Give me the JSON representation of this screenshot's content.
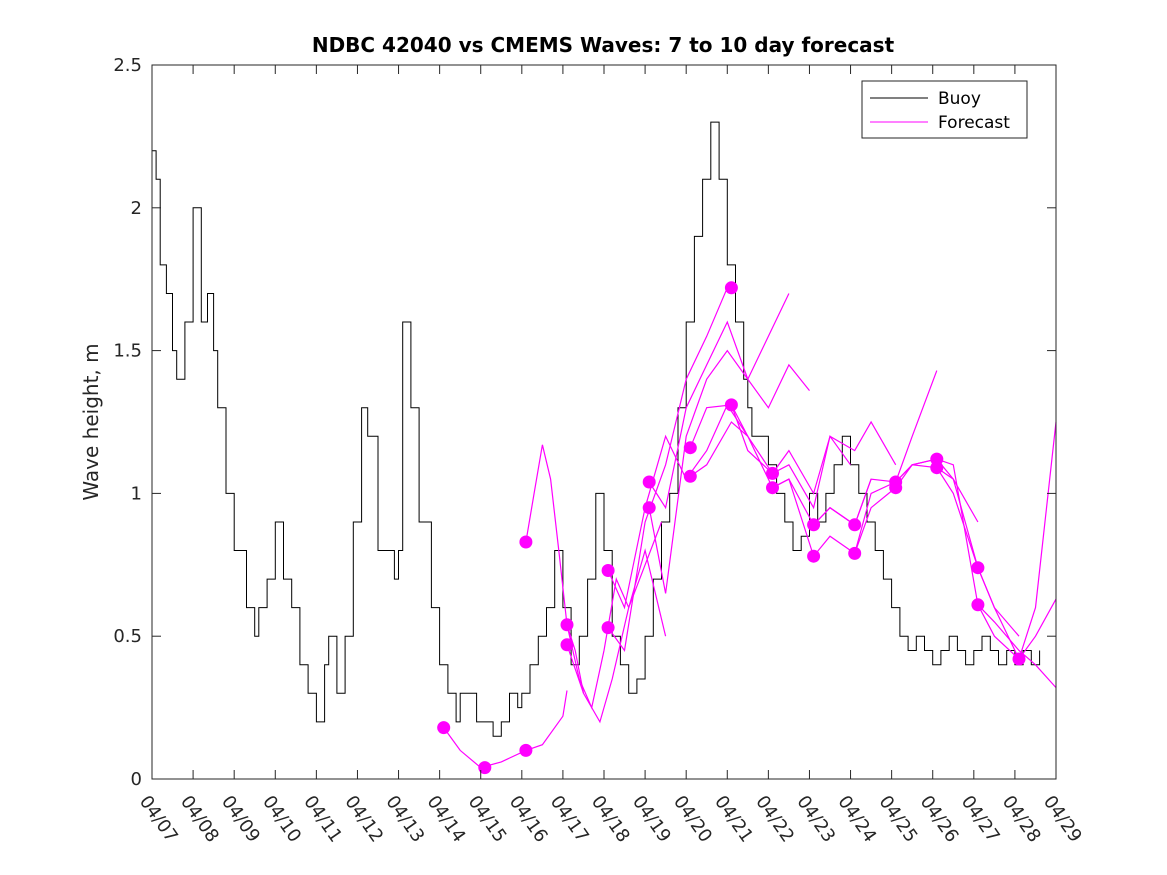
{
  "chart_data": {
    "type": "line",
    "title": "NDBC 42040 vs CMEMS Waves: 7 to 10 day forecast",
    "xlabel": "",
    "ylabel": "Wave height, m",
    "x_ticks": [
      "04/07",
      "04/08",
      "04/09",
      "04/10",
      "04/11",
      "04/12",
      "04/13",
      "04/14",
      "04/15",
      "04/16",
      "04/17",
      "04/18",
      "04/19",
      "04/20",
      "04/21",
      "04/22",
      "04/23",
      "04/24",
      "04/25",
      "04/26",
      "04/27",
      "04/28",
      "04/29"
    ],
    "y_ticks": [
      "0",
      "0.5",
      "1",
      "1.5",
      "2",
      "2.5"
    ],
    "xlim": [
      0,
      22
    ],
    "ylim": [
      0,
      2.5
    ],
    "legend": {
      "placement": "top-right",
      "entries": [
        "Buoy",
        "Forecast"
      ]
    },
    "colors": {
      "buoy": "#000000",
      "forecast": "#ff00ff"
    },
    "series": [
      {
        "name": "Buoy",
        "x": [
          0.0,
          0.1,
          0.2,
          0.35,
          0.5,
          0.6,
          0.8,
          1.0,
          1.2,
          1.35,
          1.5,
          1.6,
          1.8,
          2.0,
          2.3,
          2.5,
          2.6,
          2.8,
          3.0,
          3.2,
          3.4,
          3.6,
          3.8,
          4.0,
          4.2,
          4.3,
          4.5,
          4.7,
          4.9,
          5.1,
          5.25,
          5.5,
          5.7,
          5.9,
          6.0,
          6.1,
          6.3,
          6.5,
          6.8,
          7.0,
          7.2,
          7.4,
          7.5,
          7.7,
          7.9,
          8.1,
          8.3,
          8.5,
          8.7,
          8.9,
          9.0,
          9.2,
          9.4,
          9.6,
          9.8,
          10.0,
          10.2,
          10.4,
          10.6,
          10.8,
          11.0,
          11.2,
          11.4,
          11.6,
          11.8,
          12.0,
          12.2,
          12.4,
          12.6,
          12.8,
          13.0,
          13.2,
          13.4,
          13.6,
          13.8,
          14.0,
          14.2,
          14.4,
          14.5,
          14.6,
          14.8,
          15.0,
          15.2,
          15.4,
          15.6,
          15.8,
          16.0,
          16.2,
          16.4,
          16.6,
          16.8,
          17.0,
          17.2,
          17.4,
          17.6,
          17.8,
          18.0,
          18.2,
          18.4,
          18.6,
          18.8,
          19.0,
          19.2,
          19.4,
          19.6,
          19.8,
          20.0,
          20.2,
          20.4,
          20.6,
          20.8,
          21.0,
          21.2,
          21.4,
          21.6
        ],
        "values": [
          2.2,
          2.1,
          1.8,
          1.7,
          1.5,
          1.4,
          1.6,
          2.0,
          1.6,
          1.7,
          1.5,
          1.3,
          1.0,
          0.8,
          0.6,
          0.5,
          0.6,
          0.7,
          0.9,
          0.7,
          0.6,
          0.4,
          0.3,
          0.2,
          0.4,
          0.5,
          0.3,
          0.5,
          0.9,
          1.3,
          1.2,
          0.8,
          0.8,
          0.7,
          0.8,
          1.6,
          1.3,
          0.9,
          0.6,
          0.4,
          0.3,
          0.2,
          0.3,
          0.3,
          0.2,
          0.2,
          0.15,
          0.2,
          0.3,
          0.25,
          0.3,
          0.4,
          0.5,
          0.6,
          0.8,
          0.6,
          0.4,
          0.5,
          0.7,
          1.0,
          0.8,
          0.5,
          0.4,
          0.3,
          0.35,
          0.5,
          0.7,
          0.9,
          1.0,
          1.3,
          1.6,
          1.9,
          2.1,
          2.3,
          2.1,
          1.8,
          1.6,
          1.4,
          1.3,
          1.2,
          1.2,
          1.1,
          1.0,
          0.9,
          0.8,
          0.85,
          1.0,
          0.9,
          1.0,
          1.1,
          1.2,
          1.1,
          1.0,
          0.9,
          0.8,
          0.7,
          0.6,
          0.5,
          0.45,
          0.5,
          0.45,
          0.4,
          0.45,
          0.5,
          0.45,
          0.4,
          0.45,
          0.5,
          0.45,
          0.4,
          0.45,
          0.4,
          0.45,
          0.4,
          0.45
        ]
      },
      {
        "name": "Forecast",
        "points": [
          {
            "x": 7.1,
            "y": 0.18
          },
          {
            "x": 8.1,
            "y": 0.04
          },
          {
            "x": 9.1,
            "y": 0.1
          },
          {
            "x": 9.1,
            "y": 0.83
          },
          {
            "x": 10.1,
            "y": 0.54
          },
          {
            "x": 10.1,
            "y": 0.47
          },
          {
            "x": 11.1,
            "y": 0.73
          },
          {
            "x": 11.1,
            "y": 0.53
          },
          {
            "x": 12.1,
            "y": 1.04
          },
          {
            "x": 12.1,
            "y": 0.95
          },
          {
            "x": 13.1,
            "y": 1.16
          },
          {
            "x": 13.1,
            "y": 1.06
          },
          {
            "x": 14.1,
            "y": 1.72
          },
          {
            "x": 14.1,
            "y": 1.31
          },
          {
            "x": 15.1,
            "y": 1.07
          },
          {
            "x": 15.1,
            "y": 1.02
          },
          {
            "x": 16.1,
            "y": 0.89
          },
          {
            "x": 16.1,
            "y": 0.78
          },
          {
            "x": 17.1,
            "y": 0.89
          },
          {
            "x": 17.1,
            "y": 0.79
          },
          {
            "x": 18.1,
            "y": 1.04
          },
          {
            "x": 18.1,
            "y": 1.02
          },
          {
            "x": 19.1,
            "y": 1.12
          },
          {
            "x": 19.1,
            "y": 1.09
          },
          {
            "x": 20.1,
            "y": 0.74
          },
          {
            "x": 20.1,
            "y": 0.61
          },
          {
            "x": 21.1,
            "y": 0.42
          }
        ],
        "lines": [
          {
            "x": [
              7.1,
              7.5,
              8.0,
              8.5,
              9.1,
              9.5,
              10.0,
              10.1
            ],
            "values": [
              0.18,
              0.1,
              0.04,
              0.06,
              0.1,
              0.12,
              0.22,
              0.31
            ]
          },
          {
            "x": [
              9.1,
              9.3,
              9.5,
              9.7,
              9.9,
              10.1,
              10.3,
              10.5
            ],
            "values": [
              0.83,
              1.0,
              1.17,
              1.05,
              0.8,
              0.54,
              0.45,
              0.3
            ]
          },
          {
            "x": [
              10.1,
              10.4,
              10.7,
              11.0,
              11.3,
              11.6,
              12.0,
              12.4
            ],
            "values": [
              0.54,
              0.35,
              0.25,
              0.45,
              0.7,
              0.6,
              0.75,
              0.9
            ]
          },
          {
            "x": [
              10.1,
              10.5,
              10.9,
              11.2,
              11.6,
              12.0,
              12.5
            ],
            "values": [
              0.47,
              0.3,
              0.2,
              0.35,
              0.6,
              0.8,
              0.5
            ]
          },
          {
            "x": [
              11.1,
              11.5,
              12.0,
              12.5,
              13.0,
              13.5,
              14.0,
              14.5
            ],
            "values": [
              0.73,
              0.6,
              0.95,
              1.2,
              1.05,
              1.15,
              1.31,
              1.2
            ]
          },
          {
            "x": [
              11.1,
              11.5,
              12.0,
              12.5,
              13.0,
              13.5,
              14.0
            ],
            "values": [
              0.53,
              0.45,
              0.9,
              1.1,
              1.4,
              1.55,
              1.72
            ]
          },
          {
            "x": [
              12.1,
              12.5,
              13.0,
              13.5,
              14.0,
              14.5,
              15.0,
              15.5,
              16.0
            ],
            "values": [
              1.04,
              0.95,
              1.3,
              1.45,
              1.6,
              1.4,
              1.3,
              1.45,
              1.36
            ]
          },
          {
            "x": [
              12.1,
              12.5,
              13.0,
              13.5,
              14.0,
              14.5,
              15.0,
              15.5
            ],
            "values": [
              0.95,
              0.65,
              1.2,
              1.4,
              1.5,
              1.4,
              1.55,
              1.7
            ]
          },
          {
            "x": [
              13.1,
              13.5,
              14.1,
              14.5,
              15.1,
              15.5,
              16.1,
              16.5,
              17.0
            ],
            "values": [
              1.16,
              1.3,
              1.31,
              1.2,
              1.07,
              1.15,
              1.0,
              1.2,
              1.1
            ]
          },
          {
            "x": [
              13.1,
              13.5,
              14.1,
              14.5,
              15.1,
              15.5,
              16.1,
              16.5,
              17.1,
              17.5
            ],
            "values": [
              1.06,
              1.1,
              1.25,
              1.2,
              1.02,
              1.05,
              0.89,
              0.95,
              0.89,
              1.05
            ]
          },
          {
            "x": [
              14.1,
              14.5,
              15.1,
              15.5,
              16.1,
              16.5,
              17.1,
              17.5,
              18.1
            ],
            "values": [
              1.31,
              1.15,
              1.07,
              1.1,
              0.95,
              1.2,
              1.15,
              1.25,
              1.1
            ]
          },
          {
            "x": [
              15.1,
              15.5,
              16.1,
              16.5,
              17.1,
              17.5,
              18.1,
              18.5,
              19.1
            ],
            "values": [
              1.02,
              1.05,
              0.78,
              0.85,
              0.79,
              1.0,
              1.04,
              1.2,
              1.43
            ]
          },
          {
            "x": [
              16.1,
              16.5,
              17.1,
              17.5,
              18.1,
              18.5,
              19.1,
              19.5,
              20.1
            ],
            "values": [
              0.89,
              0.95,
              0.89,
              1.05,
              1.04,
              1.1,
              1.12,
              1.05,
              0.9
            ]
          },
          {
            "x": [
              17.1,
              17.5,
              18.1,
              18.5,
              19.1,
              19.5,
              20.1,
              20.5,
              21.1
            ],
            "values": [
              0.79,
              0.95,
              1.02,
              1.1,
              1.09,
              1.0,
              0.74,
              0.6,
              0.5
            ]
          },
          {
            "x": [
              18.1,
              18.5,
              19.1,
              19.5,
              20.1,
              20.5,
              21.1,
              21.5,
              22.0
            ],
            "values": [
              1.04,
              1.1,
              1.12,
              1.1,
              0.61,
              0.55,
              0.45,
              0.4,
              0.32
            ]
          },
          {
            "x": [
              19.1,
              19.5,
              20.1,
              20.5,
              21.1,
              21.5,
              22.0
            ],
            "values": [
              1.09,
              1.05,
              0.74,
              0.6,
              0.42,
              0.5,
              0.63
            ]
          },
          {
            "x": [
              20.1,
              20.5,
              21.1,
              21.5,
              22.0
            ],
            "values": [
              0.61,
              0.5,
              0.42,
              0.6,
              1.25
            ]
          }
        ]
      }
    ]
  }
}
